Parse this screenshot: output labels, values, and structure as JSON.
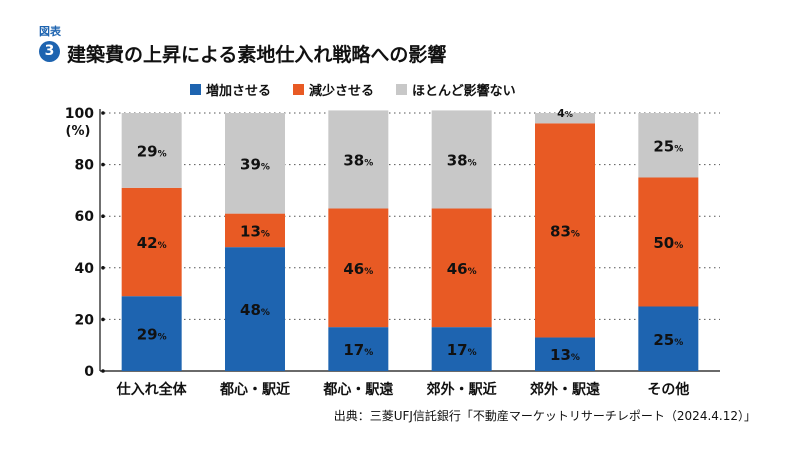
{
  "figure_label": "図表",
  "figure_number": "3",
  "title": "建築費の上昇による素地仕入れ戦略への影響",
  "source": "出典：三菱UFJ信託銀行「不動産マーケットリサーチレポート（2024.4.12）」",
  "colors": {
    "increase": "#1e64b0",
    "decrease": "#e85a24",
    "no_effect": "#c8c8c8"
  },
  "chart_data": {
    "type": "bar",
    "stacked": true,
    "categories": [
      "仕入れ全体",
      "都心・駅近",
      "都心・駅遠",
      "郊外・駅近",
      "郊外・駅遠",
      "その他"
    ],
    "series": [
      {
        "name": "増加させる",
        "values": [
          29,
          48,
          17,
          17,
          13,
          25
        ],
        "labels": [
          "29%",
          "48%",
          "17%",
          "17%",
          "13%",
          "25%"
        ]
      },
      {
        "name": "減少させる",
        "values": [
          42,
          13,
          46,
          46,
          83,
          50
        ],
        "labels": [
          "42%",
          "13%",
          "46%",
          "46%",
          "83%",
          "50%"
        ]
      },
      {
        "name": "ほとんど影響ない",
        "values": [
          29,
          39,
          38,
          38,
          4,
          25
        ],
        "labels": [
          "29%",
          "39%",
          "38%",
          "38%",
          "4%",
          "25%"
        ]
      }
    ],
    "ylim": [
      0,
      100
    ],
    "yticks": [
      "0",
      "20",
      "40",
      "60",
      "80",
      "100"
    ],
    "yunit": "(%)",
    "grid": true,
    "legend": "top"
  }
}
